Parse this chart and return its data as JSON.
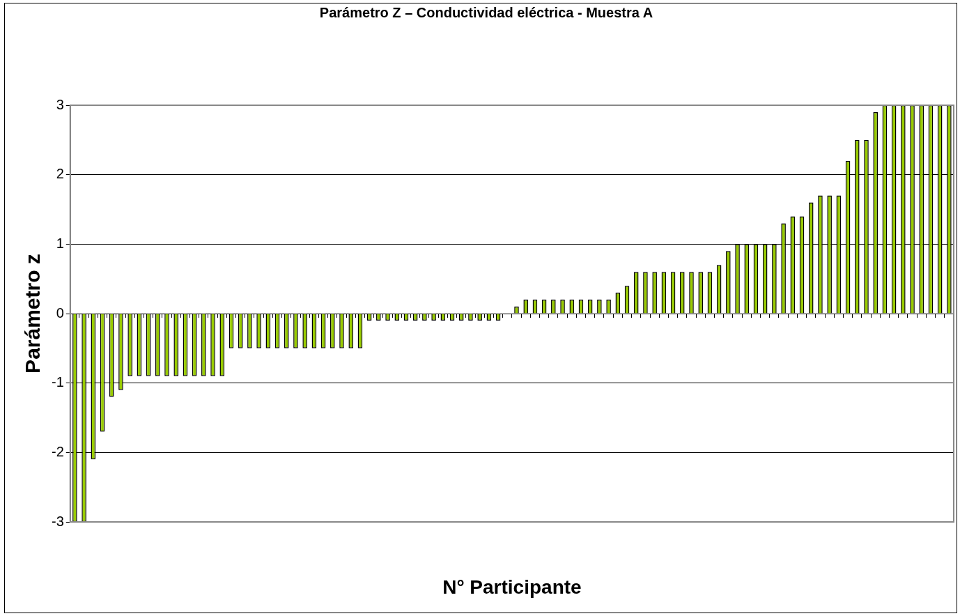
{
  "chart_data": {
    "type": "bar",
    "title": "Parámetro Z – Conductividad eléctrica - Muestra A",
    "xlabel": "N° Participante",
    "ylabel": "Parámetro z",
    "categories": [
      null,
      null,
      null,
      null,
      null,
      null,
      null,
      null,
      null,
      null,
      null,
      null,
      null,
      null,
      null,
      null,
      null,
      null,
      null,
      null,
      null,
      null,
      null,
      null,
      null,
      null,
      null,
      null,
      null,
      null,
      null,
      null,
      null,
      null,
      null,
      null,
      null,
      null,
      null,
      null,
      null,
      null,
      null,
      null,
      null,
      null,
      null,
      null,
      null,
      null,
      null,
      null,
      null,
      null,
      null,
      null,
      null,
      null,
      null,
      null,
      null,
      null,
      null,
      null,
      null,
      null,
      null,
      null,
      null,
      null,
      null,
      null,
      null,
      null,
      null,
      null,
      null,
      null,
      null,
      null,
      null,
      null,
      null,
      null,
      null,
      null,
      null,
      null,
      null,
      null,
      null,
      null,
      null,
      null,
      null,
      null
    ],
    "values": [
      -3,
      -3,
      -2.1,
      -1.7,
      -1.2,
      -1.1,
      -0.9,
      -0.9,
      -0.9,
      -0.9,
      -0.9,
      -0.9,
      -0.9,
      -0.9,
      -0.9,
      -0.9,
      -0.9,
      -0.5,
      -0.5,
      -0.5,
      -0.5,
      -0.5,
      -0.5,
      -0.5,
      -0.5,
      -0.5,
      -0.5,
      -0.5,
      -0.5,
      -0.5,
      -0.5,
      -0.5,
      -0.1,
      -0.1,
      -0.1,
      -0.1,
      -0.1,
      -0.1,
      -0.1,
      -0.1,
      -0.1,
      -0.1,
      -0.1,
      -0.1,
      -0.1,
      -0.1,
      -0.1,
      0,
      0.1,
      0.2,
      0.2,
      0.2,
      0.2,
      0.2,
      0.2,
      0.2,
      0.2,
      0.2,
      0.2,
      0.3,
      0.4,
      0.6,
      0.6,
      0.6,
      0.6,
      0.6,
      0.6,
      0.6,
      0.6,
      0.6,
      0.7,
      0.9,
      1,
      1,
      1,
      1,
      1,
      1.3,
      1.4,
      1.4,
      1.6,
      1.7,
      1.7,
      1.7,
      2.2,
      2.5,
      2.5,
      2.9,
      3,
      3,
      3,
      3,
      3,
      3,
      3,
      3
    ],
    "color": "#99cc00",
    "ylim": [
      -3,
      3
    ],
    "yticks": [
      -3,
      -2,
      -1,
      0,
      1,
      2,
      3
    ],
    "grid": "y",
    "tick_labels": "y"
  }
}
